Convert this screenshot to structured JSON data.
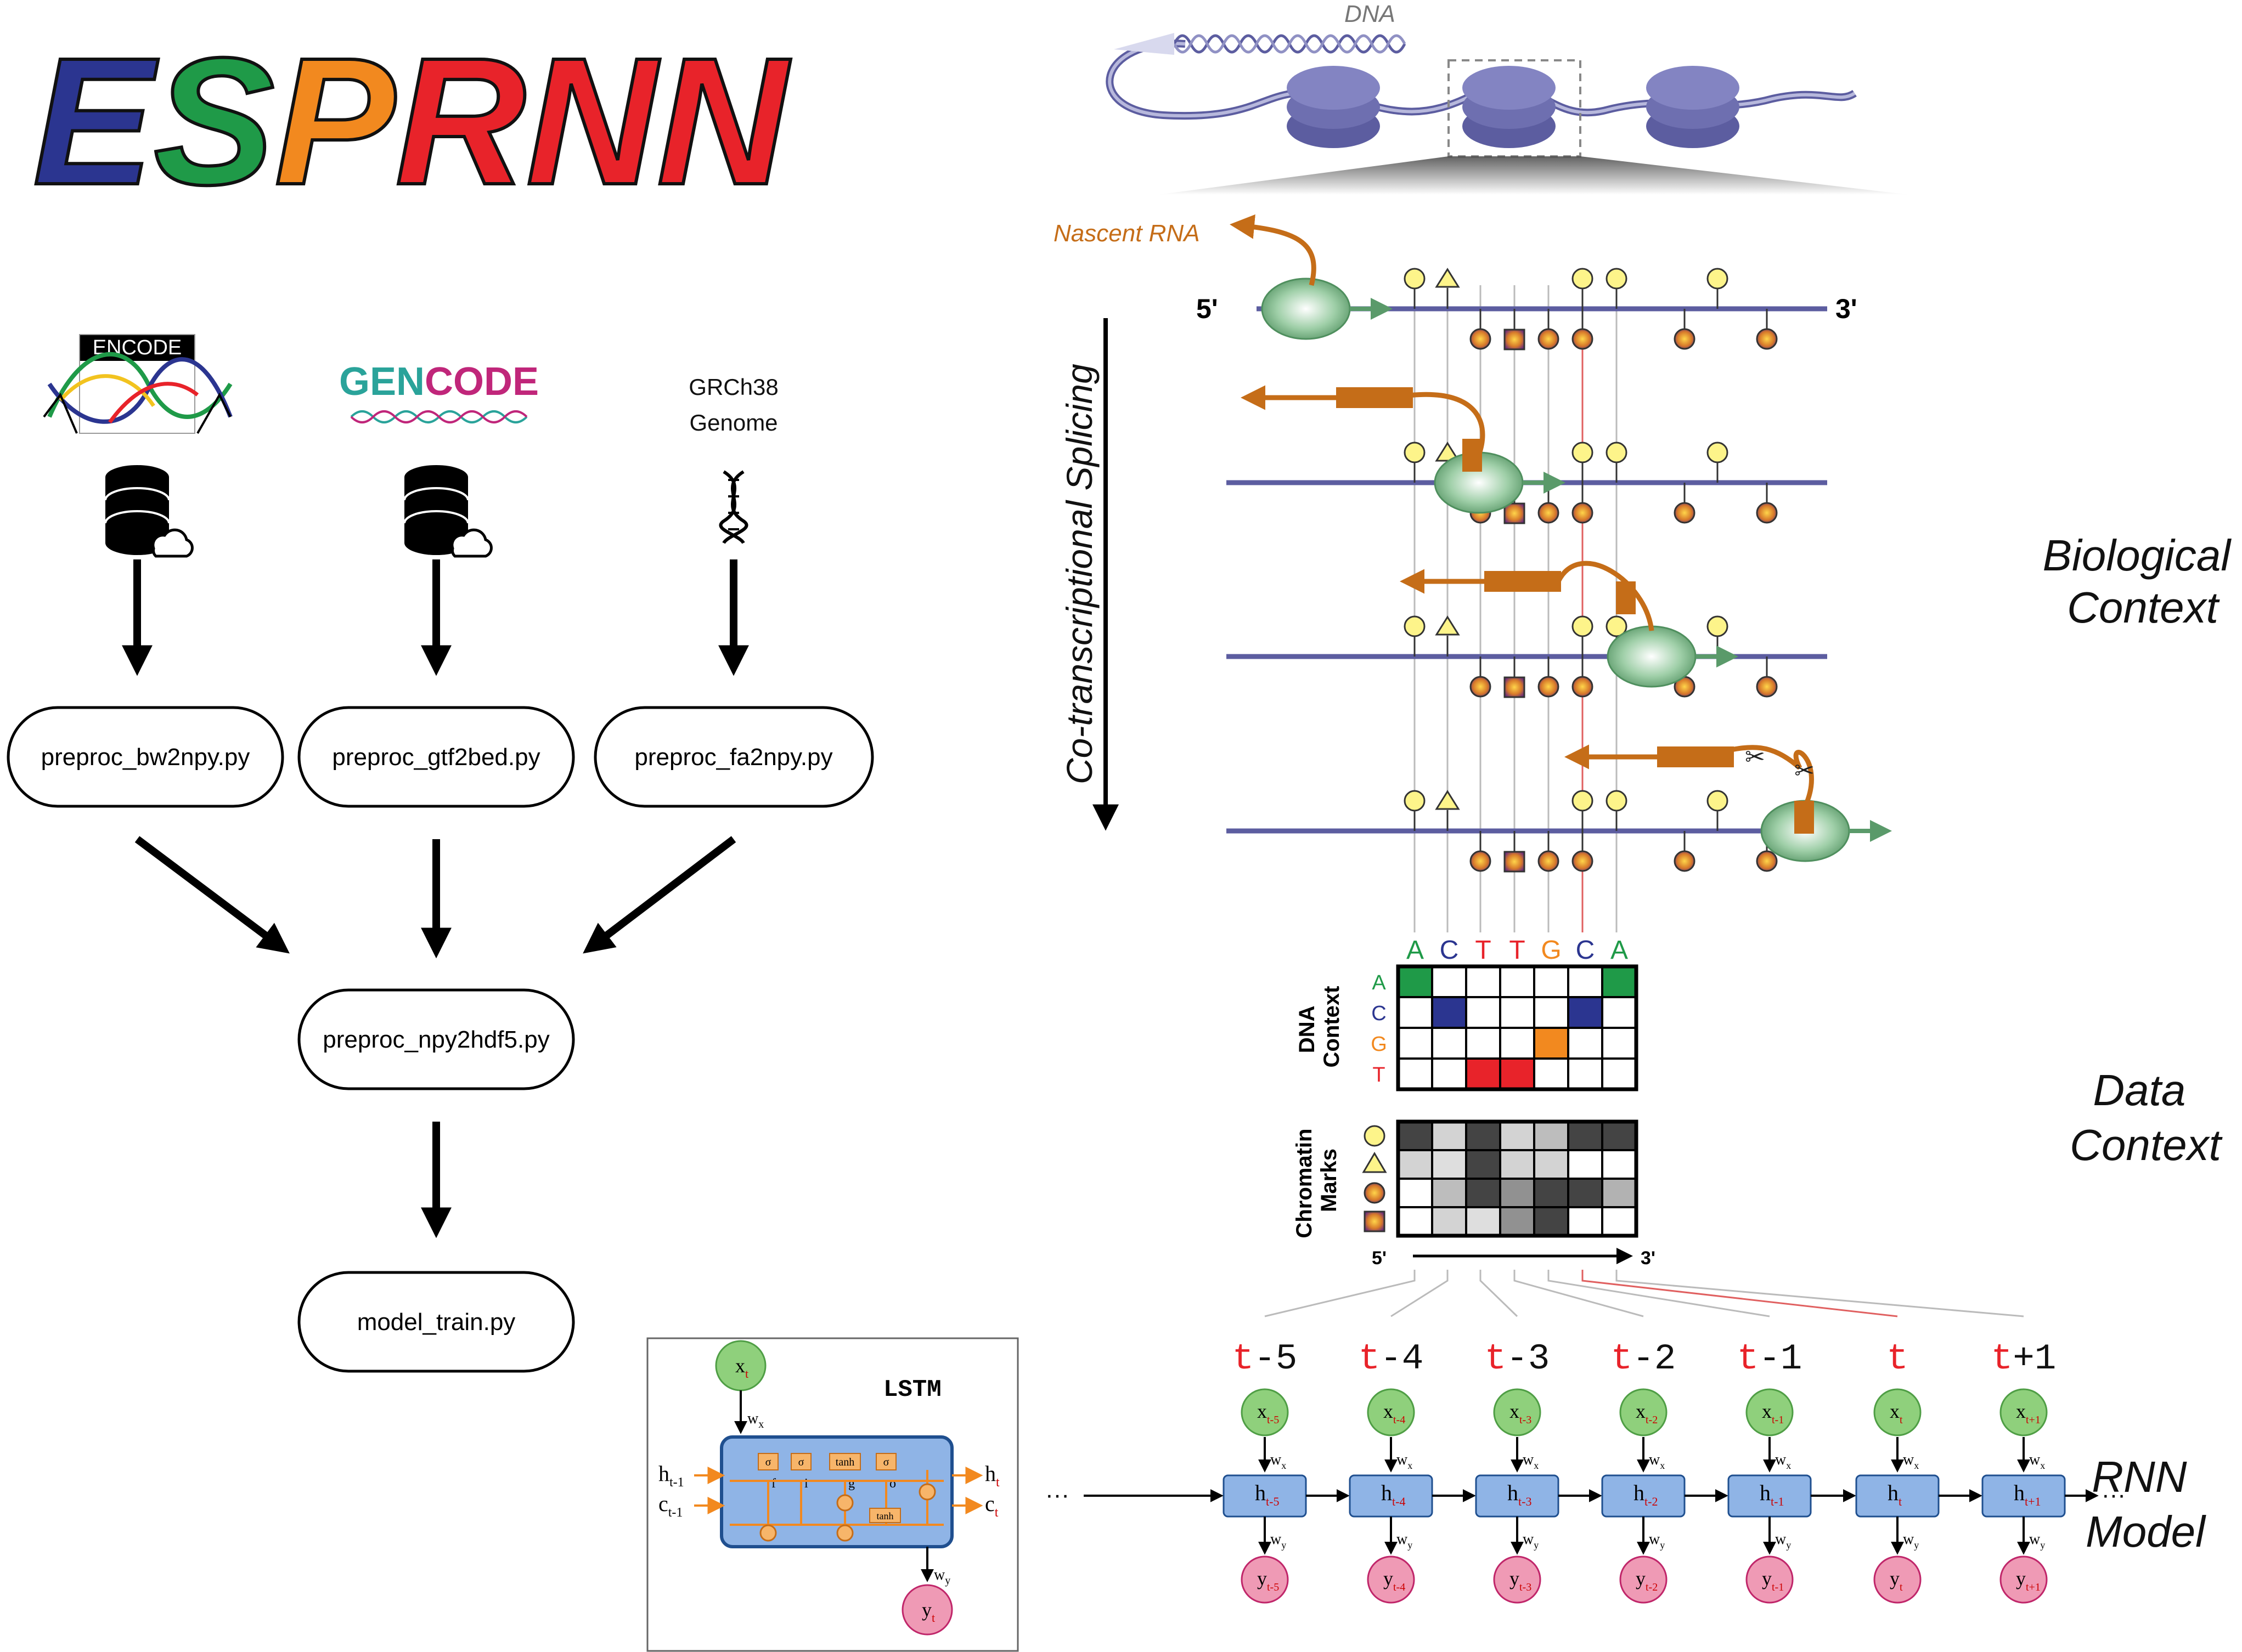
{
  "logo": {
    "letters": [
      {
        "ch": "E",
        "color": "#2b3590"
      },
      {
        "ch": "S",
        "color": "#1f9a48"
      },
      {
        "ch": "P",
        "color": "#f2891f"
      },
      {
        "ch": "R",
        "color": "#e8232a"
      },
      {
        "ch": "N",
        "color": "#e8232a"
      },
      {
        "ch": "N",
        "color": "#e8232a"
      }
    ]
  },
  "pipeline": {
    "sources": [
      {
        "name": "ENCODE",
        "icon": "database-cloud-icon"
      },
      {
        "name": "GENCODE",
        "icon": "database-cloud-icon"
      },
      {
        "name": "GRCh38\nGenome",
        "line1": "GRCh38",
        "line2": "Genome",
        "icon": "dna-icon"
      }
    ],
    "steps": {
      "bw2npy": "preproc_bw2npy.py",
      "gtf2bed": "preproc_gtf2bed.py",
      "fa2npy": "preproc_fa2npy.py",
      "npy2hdf5": "preproc_npy2hdf5.py",
      "train": "model_train.py"
    }
  },
  "bio": {
    "dna_label": "DNA",
    "nascent_rna": "Nascent RNA",
    "five_prime": "5'",
    "three_prime": "3'",
    "vertical_label": "Co-transcriptional Splicing"
  },
  "sections": {
    "biological": [
      "Biological",
      "Context"
    ],
    "data": [
      "Data",
      "Context"
    ],
    "rnn": [
      "RNN",
      "Model"
    ]
  },
  "dna_context": {
    "title": [
      "DNA",
      "Context"
    ],
    "sequence": [
      "A",
      "C",
      "T",
      "T",
      "G",
      "C",
      "A"
    ],
    "rows": [
      "A",
      "C",
      "G",
      "T"
    ],
    "colors": {
      "A": "#1f9a48",
      "C": "#2b3590",
      "G": "#f2891f",
      "T": "#e8232a"
    }
  },
  "chromatin": {
    "title": [
      "Chromatin",
      "Marks"
    ],
    "axis_start": "5'",
    "axis_end": "3'",
    "grid": [
      [
        0.85,
        0.2,
        0.85,
        0.2,
        0.3,
        0.85,
        0.85
      ],
      [
        0.2,
        0.15,
        0.85,
        0.2,
        0.2,
        0.0,
        0.0
      ],
      [
        0.0,
        0.3,
        0.85,
        0.5,
        0.85,
        0.85,
        0.35
      ],
      [
        0.0,
        0.2,
        0.15,
        0.5,
        0.85,
        0.0,
        0.0
      ]
    ]
  },
  "rnn": {
    "timesteps": [
      {
        "t": "t",
        "op": "-",
        "n": "5",
        "x": "x",
        "xs": "t-5",
        "h": "h",
        "hs": "t-5",
        "y": "y",
        "ys": "t-5"
      },
      {
        "t": "t",
        "op": "-",
        "n": "4",
        "x": "x",
        "xs": "t-4",
        "h": "h",
        "hs": "t-4",
        "y": "y",
        "ys": "t-4"
      },
      {
        "t": "t",
        "op": "-",
        "n": "3",
        "x": "x",
        "xs": "t-3",
        "h": "h",
        "hs": "t-3",
        "y": "y",
        "ys": "t-3"
      },
      {
        "t": "t",
        "op": "-",
        "n": "2",
        "x": "x",
        "xs": "t-2",
        "h": "h",
        "hs": "t-2",
        "y": "y",
        "ys": "t-2"
      },
      {
        "t": "t",
        "op": "-",
        "n": "1",
        "x": "x",
        "xs": "t-1",
        "h": "h",
        "hs": "t-1",
        "y": "y",
        "ys": "t-1"
      },
      {
        "t": "t",
        "op": "",
        "n": "",
        "x": "x",
        "xs": "t",
        "h": "h",
        "hs": "t",
        "y": "y",
        "ys": "t"
      },
      {
        "t": "t",
        "op": "+",
        "n": "1",
        "x": "x",
        "xs": "t+1",
        "h": "h",
        "hs": "t+1",
        "y": "y",
        "ys": "t+1"
      }
    ],
    "wx": "w",
    "wx_sub": "x",
    "wy": "w",
    "wy_sub": "y",
    "ellipsis": "···"
  },
  "lstm": {
    "title": "LSTM",
    "x": "x",
    "x_sub": "t",
    "y": "y",
    "y_sub": "t",
    "h_in": "h",
    "h_in_sub": "t-1",
    "c_in": "c",
    "c_in_sub": "t-1",
    "h_out": "h",
    "h_out_sub": "t",
    "c_out": "c",
    "c_out_sub": "t",
    "wx": "w",
    "wx_sub": "x",
    "wy": "w",
    "wy_sub": "y",
    "gates": [
      "σ",
      "σ",
      "tanh",
      "σ"
    ],
    "gate_labels": [
      "f",
      "i",
      "g",
      "o"
    ],
    "tanh2": "tanh"
  }
}
